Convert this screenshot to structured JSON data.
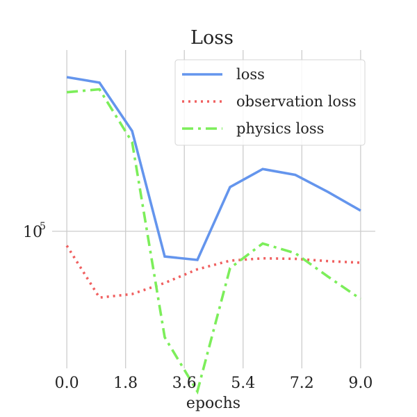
{
  "chart_data": {
    "type": "line",
    "title": "Loss",
    "xlabel": "epochs",
    "ylabel": "",
    "y_scale": "log",
    "grid": true,
    "legend_position": "top-right",
    "x": [
      0,
      1,
      2,
      3,
      4,
      5,
      6,
      7,
      8,
      9
    ],
    "xticks": [
      "0.0",
      "1.8",
      "3.6",
      "5.4",
      "7.2",
      "9.0"
    ],
    "xtick_values": [
      0,
      1.8,
      3.6,
      5.4,
      7.2,
      9.0
    ],
    "yticks": [
      {
        "value": 100000,
        "base": "10",
        "exponent": "5"
      }
    ],
    "xlim": [
      -0.45,
      9.45
    ],
    "ylim": [
      50000,
      250000
    ],
    "series": [
      {
        "name": "loss",
        "color": "#6495ED",
        "dash": "solid",
        "values": [
          218000,
          212000,
          166000,
          88000,
          86500,
          125000,
          137000,
          133000,
          122000,
          111000
        ]
      },
      {
        "name": "observation loss",
        "color": "#F06060",
        "dash": "dotted",
        "values": [
          93000,
          71500,
          72800,
          77000,
          82500,
          86200,
          87200,
          87000,
          86000,
          85300
        ]
      },
      {
        "name": "physics loss",
        "color": "#7CEE5A",
        "dash": "dashdot",
        "values": [
          202000,
          205000,
          157000,
          58500,
          44500,
          83000,
          94000,
          89500,
          79500,
          71000
        ]
      }
    ]
  }
}
